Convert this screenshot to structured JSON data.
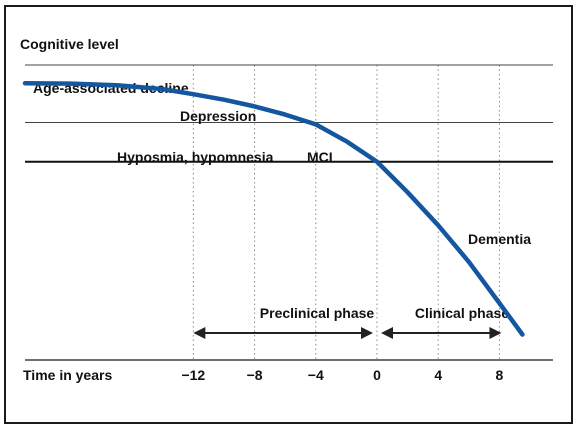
{
  "chart_data": {
    "type": "line",
    "title": "",
    "ylabel": "Cognitive level",
    "xlabel": "Time in years",
    "x_ticks": [
      -12,
      -8,
      -4,
      0,
      4,
      8
    ],
    "xlim": [
      -23,
      11.5
    ],
    "ylim": [
      -5.05,
      3.1
    ],
    "grid": "vertical dotted lines at ticks",
    "thresholds": [
      {
        "name": "Age-associated decline",
        "level": 1.0
      },
      {
        "name": "Hyposmia, hypomnesia",
        "level": 0.0
      }
    ],
    "stage_labels": [
      "Age-associated decline",
      "Depression",
      "Hyposmia, hypomnesia",
      "MCI",
      "Dementia"
    ],
    "phases": [
      {
        "label": "Preclinical phase",
        "from": -12,
        "to": 0
      },
      {
        "label": "Clinical phase",
        "from": 0,
        "to": 8
      }
    ],
    "series": [
      {
        "x": [
          -23,
          -20,
          -17,
          -14,
          -12,
          -10,
          -8,
          -6,
          -4,
          -2,
          0,
          2,
          4,
          6,
          8,
          9.5
        ],
        "y": [
          2.0,
          1.99,
          1.95,
          1.85,
          1.72,
          1.58,
          1.41,
          1.2,
          0.95,
          0.52,
          0.0,
          -0.78,
          -1.62,
          -2.55,
          -3.6,
          -4.4
        ]
      }
    ],
    "colors": {
      "curve": "#1457a0",
      "axes": "#1a1a1a",
      "gridline": "#8a8a8a"
    }
  }
}
